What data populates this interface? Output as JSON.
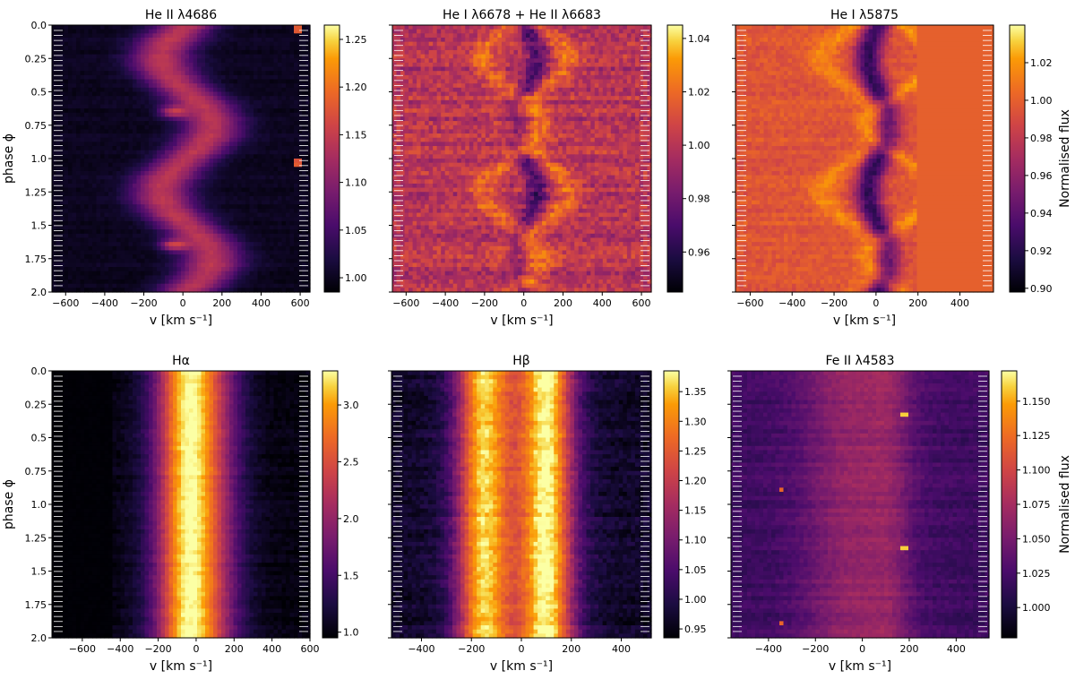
{
  "figure": {
    "colormap": "inferno",
    "colorbar_label": "Normalised flux"
  },
  "chart_data": [
    {
      "type": "heatmap",
      "title": "He II λ4686",
      "xlabel": "v [km s⁻¹]",
      "ylabel": "phase ϕ",
      "xlim": [
        -670,
        650
      ],
      "ylim": [
        2.0,
        0.0
      ],
      "xticks": [
        -600,
        -400,
        -200,
        0,
        200,
        400,
        600
      ],
      "yticks": [
        0.0,
        0.25,
        0.5,
        0.75,
        1.0,
        1.25,
        1.5,
        1.75,
        2.0
      ],
      "yticklabels": [
        "0.0",
        "0.25",
        "0.5",
        "0.75",
        "1.0",
        "1.25",
        "1.5",
        "1.75",
        "2.0"
      ],
      "clim": [
        0.985,
        1.265
      ],
      "cticks": [
        1.0,
        1.05,
        1.1,
        1.15,
        1.2,
        1.25
      ],
      "ctick_labels": [
        "1.00",
        "1.05",
        "1.10",
        "1.15",
        "1.20",
        "1.25"
      ],
      "profile": "s-wave emission, peak ~1.25 at phase ~0.65 near -50 km/s, centroid K ~ 120 km/s"
    },
    {
      "type": "heatmap",
      "title": "He I λ6678 + He II λ6683",
      "xlabel": "v [km s⁻¹]",
      "ylabel": "",
      "xlim": [
        -670,
        650
      ],
      "ylim": [
        2.0,
        0.0
      ],
      "xticks": [
        -600,
        -400,
        -200,
        0,
        200,
        400,
        600
      ],
      "clim": [
        0.945,
        1.045
      ],
      "cticks": [
        0.96,
        0.98,
        1.0,
        1.02,
        1.04
      ],
      "ctick_labels": [
        "0.96",
        "0.98",
        "1.00",
        "1.02",
        "1.04"
      ],
      "profile": "antiphased absorption/emission components near ±150 km/s"
    },
    {
      "type": "heatmap",
      "title": "He I λ5875",
      "xlabel": "v [km s⁻¹]",
      "ylabel": "",
      "xlim": [
        -670,
        560
      ],
      "ylim": [
        2.0,
        0.0
      ],
      "xticks": [
        -600,
        -400,
        -200,
        0,
        200,
        400
      ],
      "clim": [
        0.898,
        1.04
      ],
      "cticks": [
        0.9,
        0.92,
        0.94,
        0.96,
        0.98,
        1.0,
        1.02
      ],
      "ctick_labels": [
        "0.90",
        "0.92",
        "0.94",
        "0.96",
        "0.98",
        "1.00",
        "1.02"
      ],
      "colorbar_label": "Normalised flux",
      "profile": "absorption near 0 km/s, emission peaks near ±150 km/s; data truncated above 200 km/s (flat 1.0)"
    },
    {
      "type": "heatmap",
      "title": "Hα",
      "xlabel": "v [km s⁻¹]",
      "ylabel": "phase ϕ",
      "xlim": [
        -760,
        600
      ],
      "ylim": [
        2.0,
        0.0
      ],
      "xticks": [
        -600,
        -400,
        -200,
        0,
        200,
        400,
        600
      ],
      "yticks": [
        0.0,
        0.25,
        0.5,
        0.75,
        1.0,
        1.25,
        1.5,
        1.75,
        2.0
      ],
      "yticklabels": [
        "0.0",
        "0.25",
        "0.5",
        "0.75",
        "1.0",
        "1.25",
        "1.5",
        "1.75",
        "2.0"
      ],
      "clim": [
        0.95,
        3.3
      ],
      "cticks": [
        1.0,
        1.5,
        2.0,
        2.5,
        3.0
      ],
      "ctick_labels": [
        "1.0",
        "1.5",
        "2.0",
        "2.5",
        "3.0"
      ],
      "profile": "broad emission ±200 km/s, peak ~3.2"
    },
    {
      "type": "heatmap",
      "title": "Hβ",
      "xlabel": "v [km s⁻¹]",
      "ylabel": "",
      "xlim": [
        -520,
        520
      ],
      "ylim": [
        2.0,
        0.0
      ],
      "xticks": [
        -400,
        -200,
        0,
        200,
        400
      ],
      "clim": [
        0.935,
        1.385
      ],
      "cticks": [
        0.95,
        1.0,
        1.05,
        1.1,
        1.15,
        1.2,
        1.25,
        1.3,
        1.35
      ],
      "ctick_labels": [
        "0.95",
        "1.00",
        "1.05",
        "1.10",
        "1.15",
        "1.20",
        "1.25",
        "1.30",
        "1.35"
      ],
      "profile": "double-peaked emission ±150 km/s with central dip"
    },
    {
      "type": "heatmap",
      "title": "Fe II λ4583",
      "xlabel": "v [km s⁻¹]",
      "ylabel": "",
      "xlim": [
        -560,
        540
      ],
      "ylim": [
        2.0,
        0.0
      ],
      "xticks": [
        -400,
        -200,
        0,
        200,
        400
      ],
      "clim": [
        0.978,
        1.172
      ],
      "cticks": [
        1.0,
        1.025,
        1.05,
        1.075,
        1.1,
        1.125,
        1.15
      ],
      "ctick_labels": [
        "1.000",
        "1.025",
        "1.050",
        "1.075",
        "1.100",
        "1.125",
        "1.150"
      ],
      "colorbar_label": "Normalised flux",
      "profile": "weak emission ±150 km/s, bright pixels near 185 and -345 km/s"
    }
  ]
}
